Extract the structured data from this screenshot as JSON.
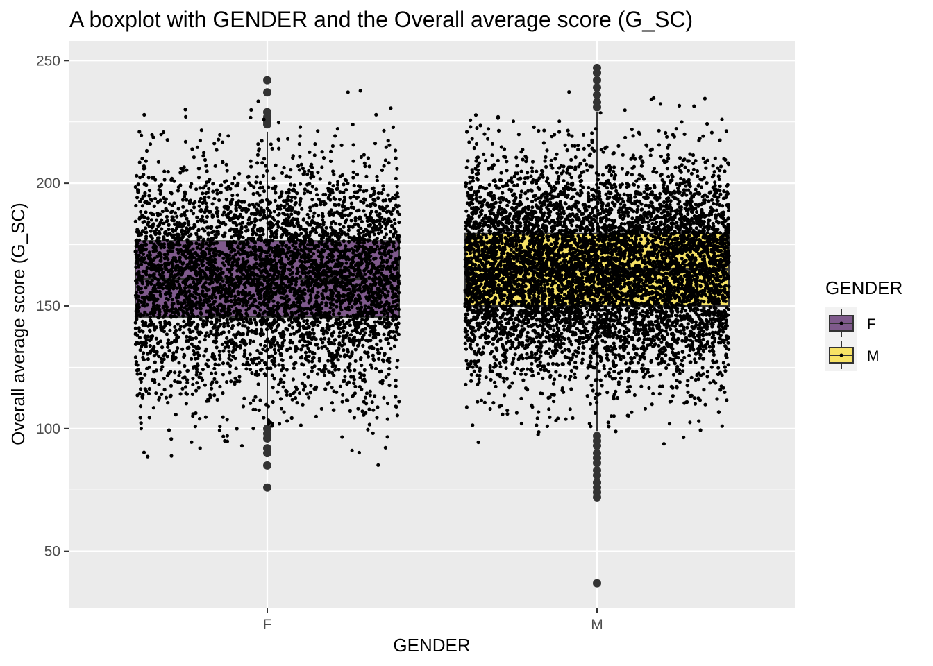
{
  "chart_data": {
    "type": "boxplot",
    "title": "A boxplot with GENDER and the Overall average score (G_SC)",
    "xlabel": "GENDER",
    "ylabel": "Overall average score (G_SC)",
    "categories": [
      "F",
      "M"
    ],
    "ylim": [
      27,
      258
    ],
    "yticks": [
      50,
      100,
      150,
      200,
      250
    ],
    "ytick_labels": [
      "50",
      "100",
      "150",
      "200",
      "250"
    ],
    "grid": true,
    "background": "#EBEBEB",
    "boxes": [
      {
        "name": "F",
        "fill": "#7F5A8C",
        "q1": 145.5,
        "median": 161,
        "q3": 176.5,
        "whisker_low": 101,
        "whisker_high": 221,
        "outliers": [
          242,
          237,
          229,
          227,
          226,
          225,
          224,
          100,
          98,
          96,
          92,
          90,
          85,
          76
        ],
        "n_jitter_points": 4800,
        "jitter_min": 76,
        "jitter_max": 242
      },
      {
        "name": "M",
        "fill": "#F7E265",
        "q1": 150,
        "median": 165,
        "q3": 179.5,
        "whisker_low": 99,
        "whisker_high": 229,
        "outliers": [
          247,
          245,
          242,
          239,
          236,
          233,
          231,
          97,
          95,
          93,
          90,
          88,
          86,
          83,
          81,
          78,
          76,
          74,
          72,
          37
        ],
        "n_jitter_points": 6800,
        "jitter_min": 37,
        "jitter_max": 247
      }
    ],
    "legend": {
      "title": "GENDER",
      "position": "right",
      "entries": [
        {
          "label": "F",
          "color": "#7F5A8C"
        },
        {
          "label": "M",
          "color": "#F7E265"
        }
      ]
    }
  }
}
